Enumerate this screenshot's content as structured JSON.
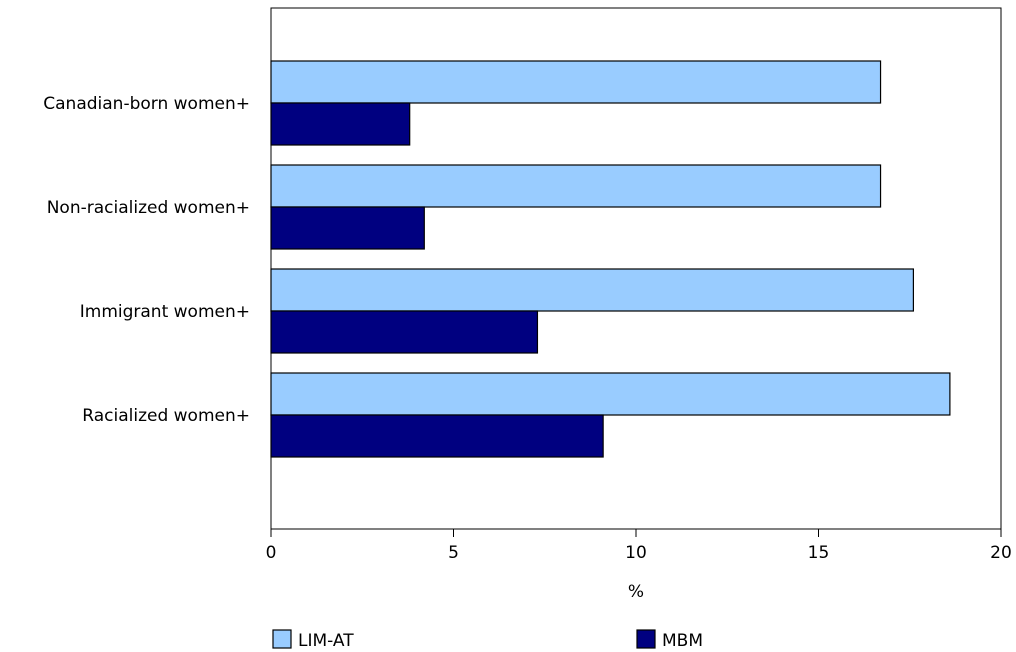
{
  "chart_data": {
    "type": "bar",
    "orientation": "horizontal",
    "categories": [
      "Canadian-born women+",
      "Non-racialized women+",
      "Immigrant women+",
      "Racialized women+"
    ],
    "series": [
      {
        "name": "LIM-AT",
        "values": [
          16.7,
          16.7,
          17.6,
          18.6
        ],
        "color": "#99ccff"
      },
      {
        "name": "MBM",
        "values": [
          3.8,
          4.2,
          7.3,
          9.1
        ],
        "color": "#000080"
      }
    ],
    "xlim": [
      0,
      20
    ],
    "xticks": [
      "0",
      "5",
      "10",
      "15",
      "20"
    ],
    "xlabel": "%",
    "ylabel": "",
    "title": "",
    "grid": false,
    "legend_position": "bottom"
  }
}
